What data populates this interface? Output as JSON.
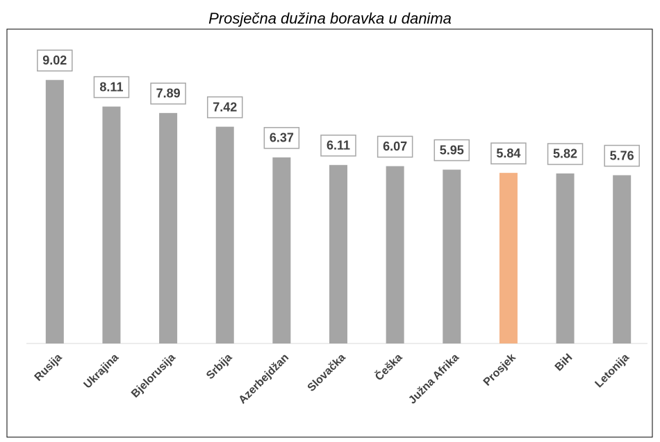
{
  "chart_data": {
    "type": "bar",
    "title": "Prosječna dužina boravka u danima",
    "categories": [
      "Rusija",
      "Ukrajina",
      "Bjelorusija",
      "Srbija",
      "Azerbejdžan",
      "Slovačka",
      "Češka",
      "Južna Afrika",
      "Prosjek",
      "BiH",
      "Letonija"
    ],
    "values": [
      9.02,
      8.11,
      7.89,
      7.42,
      6.37,
      6.11,
      6.07,
      5.95,
      5.84,
      5.82,
      5.76
    ],
    "colors": [
      "#a5a5a5",
      "#a5a5a5",
      "#a5a5a5",
      "#a5a5a5",
      "#a5a5a5",
      "#a5a5a5",
      "#a5a5a5",
      "#a5a5a5",
      "#f4b183",
      "#a5a5a5",
      "#a5a5a5"
    ],
    "ylim": [
      0,
      10
    ]
  }
}
